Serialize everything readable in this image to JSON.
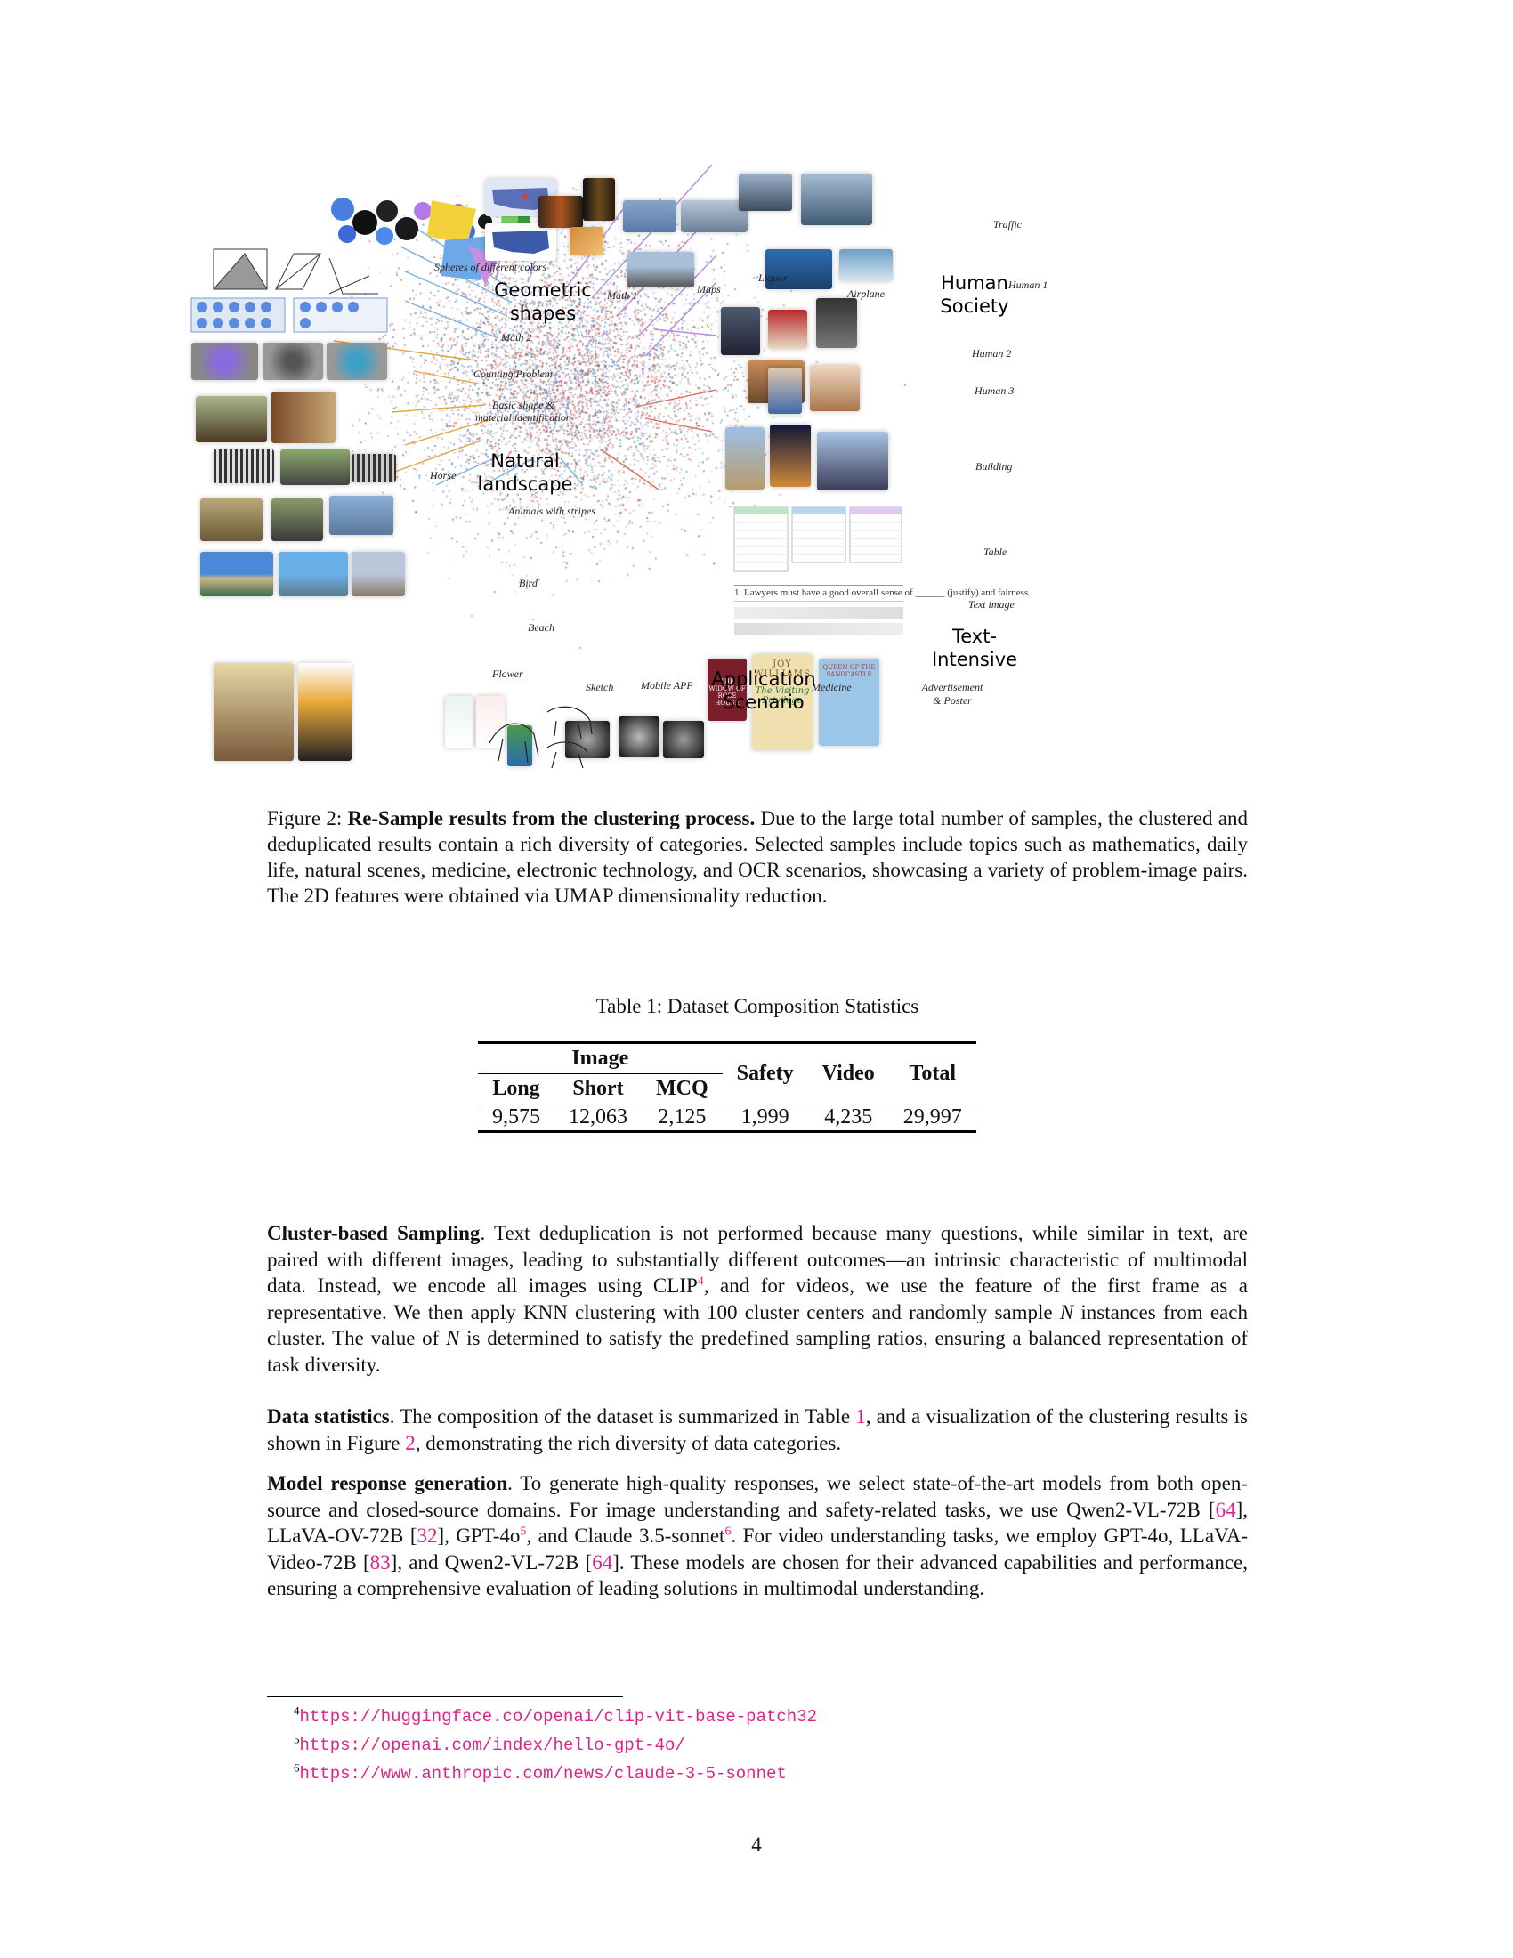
{
  "figure": {
    "small_labels": {
      "spheres": "Spheres of different colors",
      "math1": "Math 1",
      "maps": "Maps",
      "liquor": "Liquor",
      "airplane": "Airplane",
      "traffic": "Traffic",
      "human1": "Human 1",
      "math2": "Math 2",
      "counting": "Counting Problem",
      "basic_shape": "Basic shape & material identification",
      "human2": "Human 2",
      "human3": "Human 3",
      "horse": "Horse",
      "building": "Building",
      "animals_stripes": "Animals with stripes",
      "table": "Table",
      "bird": "Bird",
      "text_image": "Text image",
      "beach": "Beach",
      "flower": "Flower",
      "sketch": "Sketch",
      "mobile_app": "Mobile APP",
      "medicine": "Medicine",
      "advertisement": "Advertisement & Poster"
    },
    "group_labels": {
      "geometric": "Geometric\nshapes",
      "human_society": "Human\nSociety",
      "natural": "Natural\nlandscape",
      "text_intensive": "Text-\nIntensive",
      "application": "Application\nScenario"
    },
    "thumb_text": {
      "text_image_line": "1. Lawyers must have a good overall sense of ______ (justify) and fairness",
      "book_author": "JOY WILLIAMS",
      "book_title": "The Visiting Privilege",
      "poster_title": "THE WIDOW OF ROSE HOUSE",
      "kids_book": "QUEEN OF THE SANDCASTLE"
    }
  },
  "caption": {
    "prefix": "Figure 2: ",
    "bold": "Re-Sample results from the clustering process.",
    "text": " Due to the large total number of samples, the clustered and deduplicated results contain a rich diversity of categories. Selected samples include topics such as mathematics, daily life, natural scenes, medicine, electronic technology, and OCR scenarios, showcasing a variety of problem-image pairs. The 2D features were obtained via UMAP dimensionality reduction."
  },
  "table": {
    "title": "Table 1: Dataset Composition Statistics",
    "group_header": "Image",
    "headers": [
      "Long",
      "Short",
      "MCQ",
      "Safety",
      "Video",
      "Total"
    ],
    "values": [
      "9,575",
      "12,063",
      "2,125",
      "1,999",
      "4,235",
      "29,997"
    ]
  },
  "paragraphs": {
    "p1": {
      "bold": "Cluster-based Sampling",
      "t1": ". Text deduplication is not performed because many questions, while similar in text, are paired with different images, leading to substantially different outcomes—an intrinsic characteristic of multimodal data. Instead, we encode all images using CLIP",
      "fn1": "4",
      "t2": ", and for videos, we use the feature of the first frame as a representative. We then apply KNN clustering with 100 cluster centers and randomly sample ",
      "n1": "N",
      "t3": " instances from each cluster. The value of ",
      "n2": "N",
      "t4": " is determined to satisfy the predefined sampling ratios, ensuring a balanced representation of task diversity."
    },
    "p2": {
      "bold": "Data statistics",
      "t1": ". The composition of the dataset is summarized in Table ",
      "r1": "1",
      "t2": ", and a visualization of the clustering results is shown in Figure ",
      "r2": "2",
      "t3": ", demonstrating the rich diversity of data categories."
    },
    "p3": {
      "bold": "Model response generation",
      "t1": ". To generate high-quality responses, we select state-of-the-art models from both open-source and closed-source domains. For image understanding and safety-related tasks, we use Qwen2-VL-72B [",
      "r1": "64",
      "t2": "], LLaVA-OV-72B [",
      "r2": "32",
      "t3": "], GPT-4o",
      "fn5": "5",
      "t4": ", and Claude 3.5-sonnet",
      "fn6": "6",
      "t5": ". For video understanding tasks, we employ GPT-4o, LLaVA-Video-72B [",
      "r3": "83",
      "t6": "], and Qwen2-VL-72B [",
      "r4": "64",
      "t7": "]. These models are chosen for their advanced capabilities and performance, ensuring a comprehensive evaluation of leading solutions in multimodal understanding."
    }
  },
  "footnotes": [
    {
      "num": "4",
      "url": "https://huggingface.co/openai/clip-vit-base-patch32"
    },
    {
      "num": "5",
      "url": "https://openai.com/index/hello-gpt-4o/"
    },
    {
      "num": "6",
      "url": "https://www.anthropic.com/news/claude-3-5-sonnet"
    }
  ],
  "page_number": "4",
  "colors": {
    "link": "#e0218a",
    "scatter_red": "#c0392b",
    "scatter_blue": "#2c6fb3",
    "line_blue": "#7fb2e0",
    "line_orange": "#e8a33d",
    "line_purple": "#b48be0",
    "line_red": "#e06a55"
  }
}
